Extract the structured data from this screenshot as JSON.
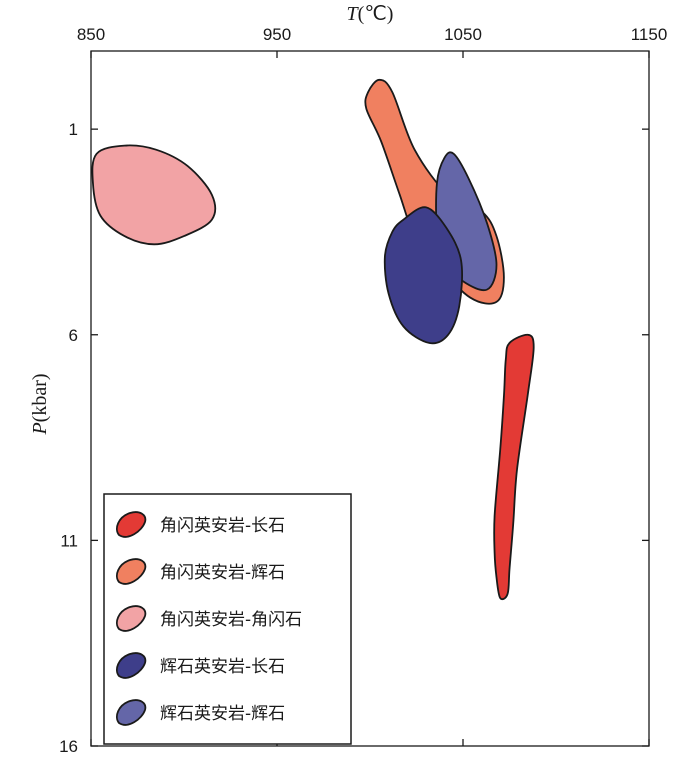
{
  "chart_data": {
    "type": "area",
    "xlabel": {
      "italic": "T",
      "rest": "(℃)"
    },
    "ylabel": {
      "italic": "P",
      "rest": "(kbar)"
    },
    "xlim": [
      850,
      1150
    ],
    "ylim": [
      16,
      -0.9
    ],
    "x_ticks": [
      850,
      950,
      1050,
      1150
    ],
    "y_ticks": [
      1,
      6,
      11,
      16
    ],
    "legend_position": "bottom-left",
    "series": [
      {
        "name": "角闪英安岩-长石",
        "color": "#e33a35",
        "polygon": [
          [
            1075,
            6.2
          ],
          [
            1085,
            6.0
          ],
          [
            1088,
            6.3
          ],
          [
            1085,
            7.4
          ],
          [
            1079,
            9.3
          ],
          [
            1077,
            10.6
          ],
          [
            1075,
            11.7
          ],
          [
            1074,
            12.3
          ],
          [
            1070,
            12.4
          ],
          [
            1068,
            11.9
          ],
          [
            1067,
            11.3
          ],
          [
            1067,
            10.4
          ],
          [
            1070,
            8.8
          ],
          [
            1072,
            7.5
          ],
          [
            1073,
            6.6
          ]
        ]
      },
      {
        "name": "角闪英安岩-辉石",
        "color": "#f08060",
        "polygon": [
          [
            999,
            0.1
          ],
          [
            1005,
            -0.2
          ],
          [
            1012,
            0.1
          ],
          [
            1024,
            1.5
          ],
          [
            1042,
            2.6
          ],
          [
            1060,
            3.0
          ],
          [
            1068,
            3.6
          ],
          [
            1072,
            4.6
          ],
          [
            1068,
            5.2
          ],
          [
            1054,
            5.1
          ],
          [
            1036,
            4.3
          ],
          [
            1024,
            3.6
          ],
          [
            1016,
            2.6
          ],
          [
            1006,
            1.3
          ],
          [
            998,
            0.5
          ]
        ]
      },
      {
        "name": "角闪英安岩-角闪石",
        "color": "#f2a3a5",
        "polygon": [
          [
            853,
            1.6
          ],
          [
            868,
            1.4
          ],
          [
            885,
            1.5
          ],
          [
            902,
            1.9
          ],
          [
            915,
            2.6
          ],
          [
            915,
            3.2
          ],
          [
            900,
            3.6
          ],
          [
            884,
            3.8
          ],
          [
            868,
            3.6
          ],
          [
            855,
            3.1
          ],
          [
            851,
            2.3
          ]
        ]
      },
      {
        "name": "辉石英安岩-长石",
        "color": "#3e3e8a",
        "polygon": [
          [
            1018,
            3.2
          ],
          [
            1030,
            2.9
          ],
          [
            1041,
            3.4
          ],
          [
            1049,
            4.2
          ],
          [
            1048,
            5.3
          ],
          [
            1042,
            6.0
          ],
          [
            1032,
            6.2
          ],
          [
            1018,
            5.8
          ],
          [
            1010,
            5.0
          ],
          [
            1008,
            4.1
          ],
          [
            1012,
            3.5
          ]
        ]
      },
      {
        "name": "辉石英安岩-辉石",
        "color": "#6466a8",
        "polygon": [
          [
            1040,
            1.7
          ],
          [
            1045,
            1.6
          ],
          [
            1053,
            2.2
          ],
          [
            1063,
            3.3
          ],
          [
            1068,
            4.3
          ],
          [
            1063,
            4.9
          ],
          [
            1050,
            4.7
          ],
          [
            1040,
            4.2
          ],
          [
            1036,
            3.5
          ],
          [
            1036,
            2.3
          ]
        ]
      }
    ]
  }
}
